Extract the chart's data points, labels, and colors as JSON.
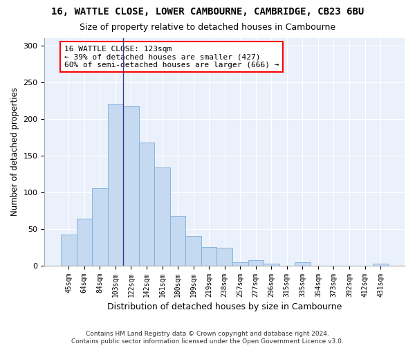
{
  "title": "16, WATTLE CLOSE, LOWER CAMBOURNE, CAMBRIDGE, CB23 6BU",
  "subtitle": "Size of property relative to detached houses in Cambourne",
  "xlabel": "Distribution of detached houses by size in Cambourne",
  "ylabel": "Number of detached properties",
  "categories": [
    "45sqm",
    "64sqm",
    "84sqm",
    "103sqm",
    "122sqm",
    "142sqm",
    "161sqm",
    "180sqm",
    "199sqm",
    "219sqm",
    "238sqm",
    "257sqm",
    "277sqm",
    "296sqm",
    "315sqm",
    "335sqm",
    "354sqm",
    "373sqm",
    "392sqm",
    "412sqm",
    "431sqm"
  ],
  "values": [
    42,
    64,
    105,
    220,
    218,
    168,
    134,
    68,
    40,
    25,
    24,
    4,
    7,
    3,
    0,
    4,
    0,
    0,
    0,
    0,
    3
  ],
  "bar_color": "#c5d9f0",
  "bar_edge_color": "#7aaddc",
  "highlight_index": 4,
  "highlight_line_color": "#3a3a8c",
  "annotation_text": "16 WATTLE CLOSE: 123sqm\n← 39% of detached houses are smaller (427)\n60% of semi-detached houses are larger (666) →",
  "annotation_box_color": "white",
  "annotation_box_edge_color": "red",
  "annotation_fontsize": 8,
  "ylim": [
    0,
    310
  ],
  "yticks": [
    0,
    50,
    100,
    150,
    200,
    250,
    300
  ],
  "footer": "Contains HM Land Registry data © Crown copyright and database right 2024.\nContains public sector information licensed under the Open Government Licence v3.0.",
  "title_fontsize": 10,
  "subtitle_fontsize": 9,
  "xlabel_fontsize": 9,
  "ylabel_fontsize": 8.5,
  "bg_color": "#ffffff",
  "plot_bg_color": "#eaf1fb"
}
